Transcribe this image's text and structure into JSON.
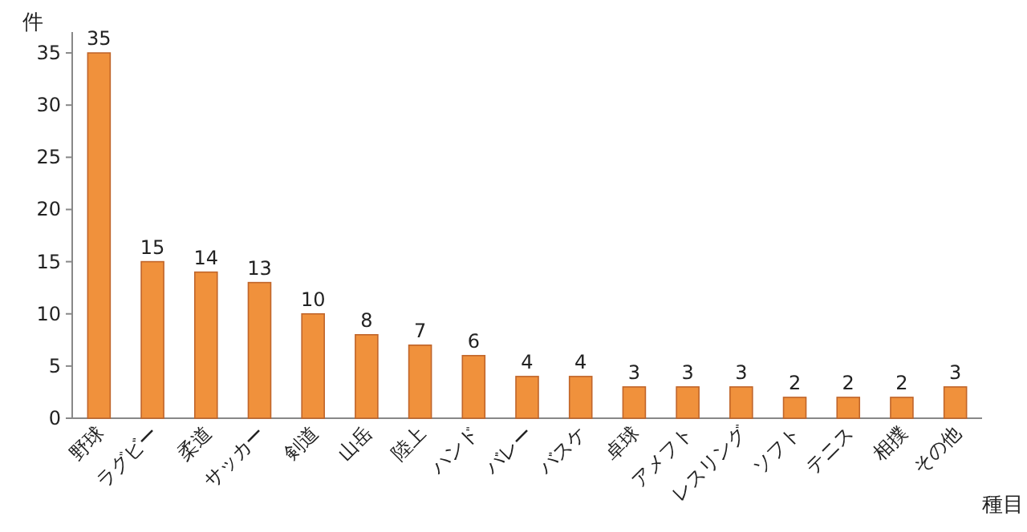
{
  "chart_data": {
    "type": "bar",
    "ylabel": "件",
    "xlabel": "種目",
    "categories": [
      "野球",
      "ラグビー",
      "柔道",
      "サッカー",
      "剣道",
      "山岳",
      "陸上",
      "ハンド",
      "バレー",
      "バスケ",
      "卓球",
      "アメフト",
      "レスリング",
      "ソフト",
      "テニス",
      "相撲",
      "その他"
    ],
    "values": [
      35,
      15,
      14,
      13,
      10,
      8,
      7,
      6,
      4,
      4,
      3,
      3,
      3,
      2,
      2,
      2,
      3
    ],
    "color": "#f0913c",
    "ylim": [
      0,
      37
    ],
    "yticks": [
      0,
      5,
      10,
      15,
      20,
      25,
      30,
      35
    ],
    "data_labels": true,
    "grid": false
  }
}
